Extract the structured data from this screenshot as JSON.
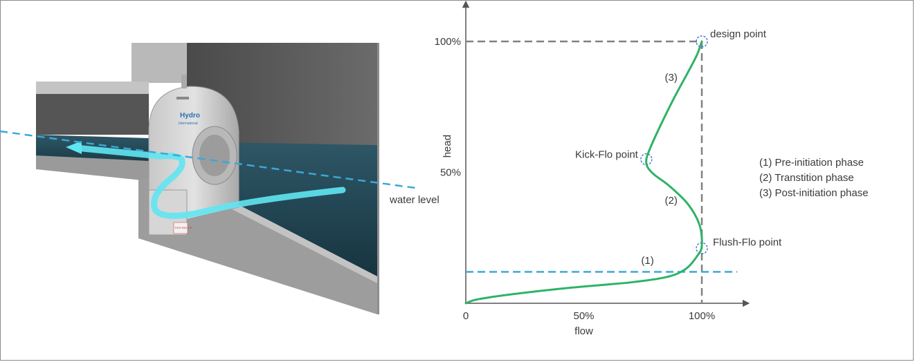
{
  "illustration": {
    "water_level_label": "water level",
    "device_brand": "Hydro",
    "device_brand_sub": "International",
    "warning_label": "THIS WAY UP"
  },
  "chart_data": {
    "type": "line",
    "xlabel": "flow",
    "ylabel": "head",
    "x_ticks": [
      "0",
      "50%",
      "100%"
    ],
    "y_ticks": [
      "50%",
      "100%"
    ],
    "xlim": [
      0,
      120
    ],
    "ylim": [
      0,
      115
    ],
    "series": [
      {
        "curve": [
          [
            0,
            0
          ],
          [
            5,
            1.5
          ],
          [
            20,
            3.5
          ],
          [
            45,
            6
          ],
          [
            70,
            8
          ],
          [
            85,
            10
          ],
          [
            93,
            13
          ],
          [
            98,
            18
          ],
          [
            100,
            22
          ],
          [
            99,
            30
          ],
          [
            94,
            38
          ],
          [
            86,
            45
          ],
          [
            80,
            49
          ],
          [
            77,
            52
          ],
          [
            76.5,
            55
          ],
          [
            78,
            59
          ],
          [
            82,
            67
          ],
          [
            88,
            78
          ],
          [
            94,
            88
          ],
          [
            98,
            95
          ],
          [
            100,
            100
          ]
        ]
      }
    ],
    "reference_lines": {
      "design_head": 100,
      "design_flow": 100,
      "water_level": 12
    },
    "points": [
      {
        "label": "design point",
        "x": 100,
        "y": 100
      },
      {
        "label": "Kick-Flo point",
        "x": 76.5,
        "y": 55
      },
      {
        "label": "Flush-Flo point",
        "x": 100,
        "y": 21
      }
    ],
    "phase_markers": [
      {
        "label": "(1)",
        "x": 77,
        "y": 15
      },
      {
        "label": "(2)",
        "x": 87,
        "y": 38
      },
      {
        "label": "(3)",
        "x": 87,
        "y": 85
      }
    ],
    "legend": [
      "(1)  Pre-initiation phase",
      "(2)  Transtition phase",
      "(3)  Post-initiation phase"
    ],
    "colors": {
      "curve": "#2db366",
      "water": "#3aa8d8",
      "guide": "#808080",
      "marker": "#4a7fc1"
    }
  }
}
